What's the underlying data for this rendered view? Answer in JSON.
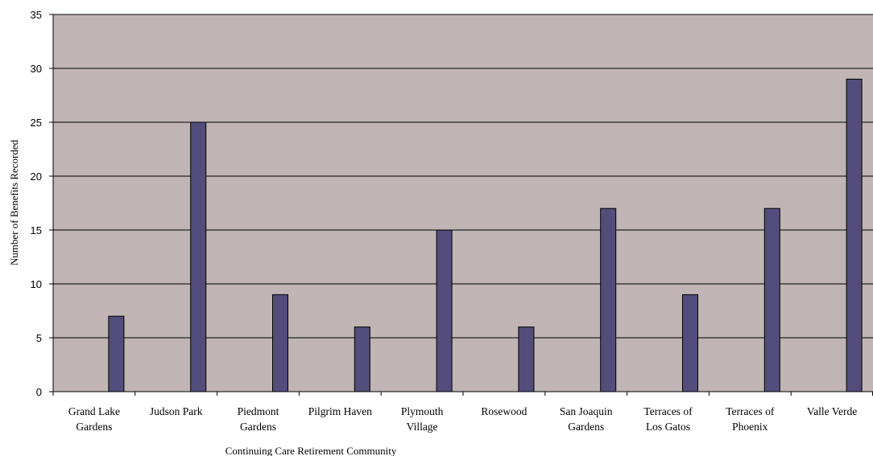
{
  "chart_data": {
    "type": "bar",
    "title": "",
    "xlabel": "Continuing Care Retirement Community",
    "ylabel": "Number of Benefits Recorded",
    "ylim": [
      0,
      35
    ],
    "yticks": [
      0,
      5,
      10,
      15,
      20,
      25,
      30,
      35
    ],
    "grid": true,
    "legend": "none",
    "categories": [
      [
        "Grand Lake",
        "Gardens"
      ],
      [
        "Judson Park"
      ],
      [
        "Piedmont",
        "Gardens"
      ],
      [
        "Pilgrim Haven"
      ],
      [
        "Plymouth",
        "Village"
      ],
      [
        "Rosewood"
      ],
      [
        "San Joaquin",
        "Gardens"
      ],
      [
        "Terraces of",
        "Los Gatos"
      ],
      [
        "Terraces of",
        "Phoenix"
      ],
      [
        "Valle Verde"
      ]
    ],
    "values": [
      7,
      25,
      9,
      6,
      15,
      6,
      17,
      9,
      17,
      29
    ],
    "colors": {
      "plot_background": "#c0b4b4",
      "bar_fill": "#524d7a",
      "bar_stroke": "#000000",
      "gridline": "#000000"
    }
  }
}
